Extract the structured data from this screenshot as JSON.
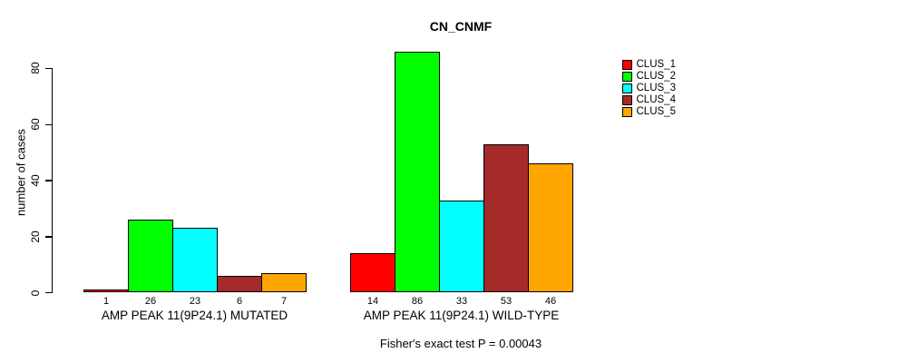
{
  "title": "CN_CNMF",
  "footer": "Fisher's exact test P = 0.00043",
  "chart_data": {
    "type": "bar",
    "title": "CN_CNMF",
    "xlabel": "",
    "ylabel": "number of cases",
    "ylim": [
      0,
      86
    ],
    "yticks": [
      0,
      20,
      40,
      60,
      80
    ],
    "grid": false,
    "legend_position": "right",
    "categories": [
      "AMP PEAK 11(9P24.1) MUTATED",
      "AMP PEAK 11(9P24.1) WILD-TYPE"
    ],
    "series": [
      {
        "name": "CLUS_1",
        "color": "#FF0000",
        "values": [
          1,
          14
        ]
      },
      {
        "name": "CLUS_2",
        "color": "#00FF00",
        "values": [
          26,
          86
        ]
      },
      {
        "name": "CLUS_3",
        "color": "#00FFFF",
        "values": [
          23,
          33
        ]
      },
      {
        "name": "CLUS_4",
        "color": "#A52A2A",
        "values": [
          6,
          53
        ]
      },
      {
        "name": "CLUS_5",
        "color": "#FFA500",
        "values": [
          7,
          46
        ]
      }
    ],
    "bar_value_labels": [
      [
        "1",
        "26",
        "23",
        "6",
        "7"
      ],
      [
        "14",
        "86",
        "33",
        "53",
        "46"
      ]
    ],
    "annotation": "Fisher's exact test P = 0.00043"
  }
}
